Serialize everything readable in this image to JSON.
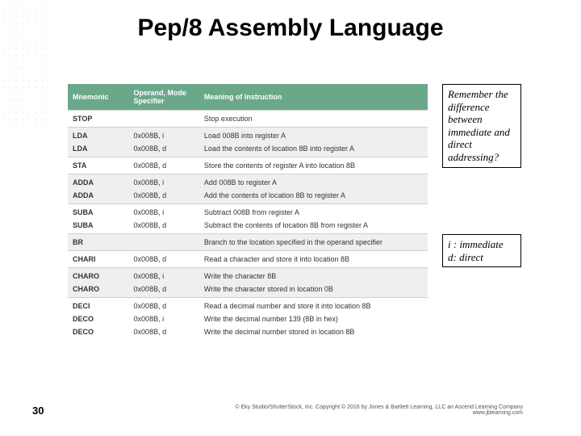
{
  "title": "Pep/8 Assembly Language",
  "page_number": "30",
  "table": {
    "header_bg": "#6aa889",
    "header_color": "#ffffff",
    "columns": [
      "Mnemonic",
      "Operand, Mode Specifier",
      "Meaning of Instruction"
    ],
    "groups": [
      {
        "shaded": false,
        "rows": [
          {
            "mn": "STOP",
            "op": "",
            "me": "Stop execution"
          }
        ]
      },
      {
        "shaded": true,
        "rows": [
          {
            "mn": "LDA",
            "op": "0x008B, i",
            "me": "Load 008B into register A"
          },
          {
            "mn": "LDA",
            "op": "0x008B, d",
            "me": "Load the contents of location 8B into register A"
          }
        ]
      },
      {
        "shaded": false,
        "rows": [
          {
            "mn": "STA",
            "op": "0x008B, d",
            "me": "Store the contents of register A into location 8B"
          }
        ]
      },
      {
        "shaded": true,
        "rows": [
          {
            "mn": "ADDA",
            "op": "0x008B, i",
            "me": "Add 008B to register A"
          },
          {
            "mn": "ADDA",
            "op": "0x008B, d",
            "me": "Add the contents of location 8B to register A"
          }
        ]
      },
      {
        "shaded": false,
        "rows": [
          {
            "mn": "SUBA",
            "op": "0x008B, i",
            "me": "Subtract 008B from register A"
          },
          {
            "mn": "SUBA",
            "op": "0x008B, d",
            "me": "Subtract the contents of location 8B from register A"
          }
        ]
      },
      {
        "shaded": true,
        "rows": [
          {
            "mn": "BR",
            "op": "",
            "me": "Branch to the location specified in the operand specifier"
          }
        ]
      },
      {
        "shaded": false,
        "rows": [
          {
            "mn": "CHARI",
            "op": "0x008B, d",
            "me": "Read a character and store it into location 8B"
          }
        ]
      },
      {
        "shaded": true,
        "rows": [
          {
            "mn": "CHARO",
            "op": "0x008B, i",
            "me": "Write the character 8B"
          },
          {
            "mn": "CHARO",
            "op": "0x008B, d",
            "me": "Write the character stored in location 0B"
          }
        ]
      },
      {
        "shaded": false,
        "rows": [
          {
            "mn": "DECI",
            "op": "0x008B, d",
            "me": "Read a decimal number and store it into location 8B"
          },
          {
            "mn": "DECO",
            "op": "0x008B, i",
            "me": "Write the decimal number 139 (8B in hex)"
          },
          {
            "mn": "DECO",
            "op": "0x008B, d",
            "me": "Write the decimal number stored in location 8B"
          }
        ]
      }
    ]
  },
  "notes": {
    "box1": "Remember the difference between immediate and direct addressing?",
    "box2_line1": "i : immediate",
    "box2_line2": "d: direct"
  },
  "copyright_line1": "© Eky Studio/ShutterStock, Inc. Copyright © 2016 by Jones & Bartlett Learning, LLC an Ascend Learning Company",
  "copyright_line2": "www.jblearning.com"
}
